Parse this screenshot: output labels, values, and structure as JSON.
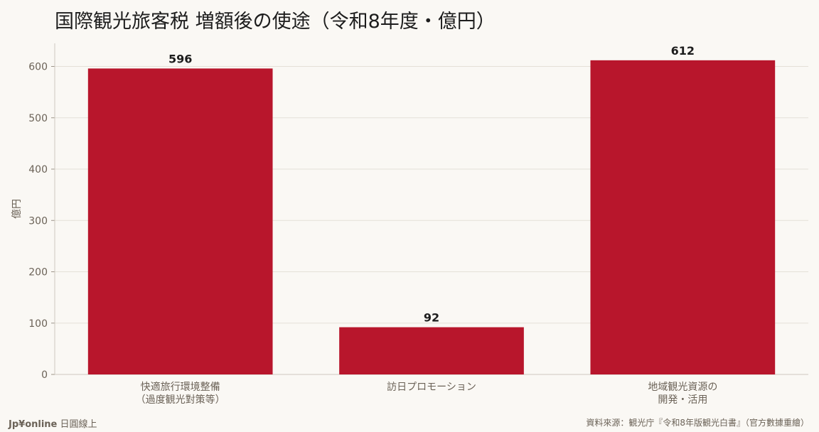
{
  "chart_data": {
    "type": "bar",
    "title": "国際観光旅客税 増額後の使途（令和8年度・億円）",
    "ylabel": "億円",
    "xlabel": "",
    "categories": [
      [
        "快適旅行環境整備",
        "（過度観光對策等）"
      ],
      [
        "訪日プロモーション"
      ],
      [
        "地域観光資源の",
        "開発・活用"
      ]
    ],
    "values": [
      596,
      92,
      612
    ],
    "value_labels": [
      "596",
      "92",
      "612"
    ],
    "ylim": [
      0,
      645
    ],
    "yticks": [
      0,
      100,
      200,
      300,
      400,
      500,
      600
    ],
    "grid": "horizontal",
    "bar_color": "#b8162c"
  },
  "footer": {
    "brand_bold": "Jp¥online",
    "brand_rest": " 日圓線上",
    "source": "資料來源：観光庁『令和8年版観光白書』（官方數據重繪）"
  }
}
